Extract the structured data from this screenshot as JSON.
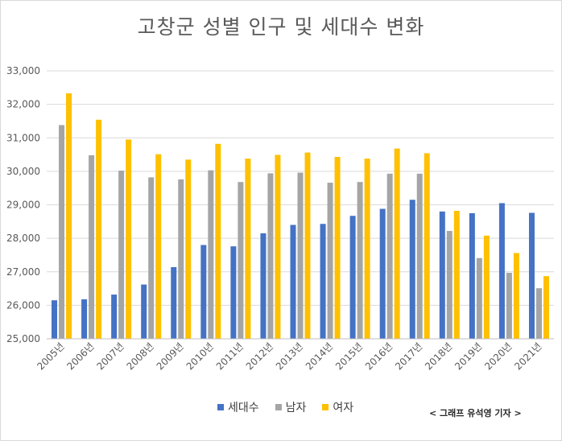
{
  "chart_data": {
    "type": "bar",
    "title": "고창군 성별 인구 및 세대수 변화",
    "categories": [
      "2005년",
      "2006년",
      "2007년",
      "2008년",
      "2009년",
      "2010년",
      "2011년",
      "2012년",
      "2013년",
      "2014년",
      "2015년",
      "2016년",
      "2017년",
      "2018년",
      "2019년",
      "2020년",
      "2021년"
    ],
    "series": [
      {
        "name": "세대수",
        "color": "#4472c4",
        "values": [
          26150,
          26180,
          26320,
          26620,
          27140,
          27800,
          27760,
          28150,
          28400,
          28430,
          28670,
          28880,
          29150,
          28800,
          28750,
          29050,
          28760
        ]
      },
      {
        "name": "남자",
        "color": "#a5a5a5",
        "values": [
          31380,
          30480,
          30020,
          29820,
          29760,
          30030,
          29680,
          29940,
          29960,
          29660,
          29680,
          29930,
          29930,
          28220,
          27410,
          26970,
          26510
        ]
      },
      {
        "name": "여자",
        "color": "#ffc000",
        "values": [
          32330,
          31540,
          30950,
          30510,
          30350,
          30820,
          30380,
          30490,
          30560,
          30430,
          30380,
          30680,
          30540,
          28820,
          28080,
          27560,
          26870
        ]
      }
    ],
    "ylim": [
      25000,
      33000
    ],
    "yticks": [
      "25,000",
      "26,000",
      "27,000",
      "28,000",
      "29,000",
      "30,000",
      "31,000",
      "32,000",
      "33,000"
    ],
    "xlabel": "",
    "ylabel": "",
    "grid": true,
    "legend": "bottom"
  },
  "legend": {
    "item_0": "세대수",
    "item_1": "남자",
    "item_2": "여자"
  },
  "credit": "< 그래프 유석영 기자 >"
}
